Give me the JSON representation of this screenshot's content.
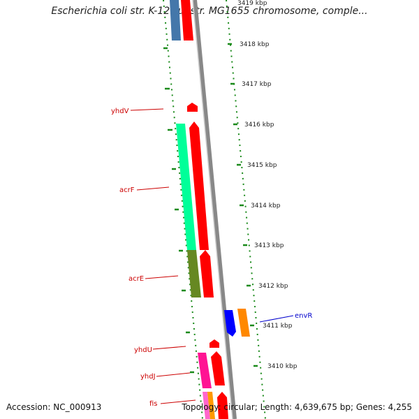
{
  "header": {
    "title": "Escherichia coli str. K-12 substr. MG1655 chromosome, comple..."
  },
  "footer": {
    "accession": "Accession: NC_000913",
    "stats": "Topology: circular; Length: 4,639,675 bp; Genes: 4,255"
  },
  "ticks": [
    "3419 kbp",
    "3418 kbp",
    "3417 kbp",
    "3416 kbp",
    "3415 kbp",
    "3414 kbp",
    "3413 kbp",
    "3412 kbp",
    "3411 kbp",
    "3410 kbp"
  ],
  "genes": [
    {
      "name": "yhdV",
      "color": "#ff0000"
    },
    {
      "name": "acrF",
      "color": "#ff0000",
      "feature_color": "#00ff99"
    },
    {
      "name": "acrE",
      "color": "#ff0000",
      "feature_color": "#668822"
    },
    {
      "name": "envR",
      "color": "#0000ff",
      "feature_color": "#ff8800"
    },
    {
      "name": "yhdU",
      "color": "#ff0000"
    },
    {
      "name": "yhdJ",
      "color": "#ff0000",
      "feature_color": "#ff1493"
    },
    {
      "name": "fis",
      "color": "#ff0000",
      "feature_color": "#ff9900"
    }
  ],
  "colors": {
    "backbone": "#888888",
    "dotted_track": "#1a8a1a",
    "label_line_left": "#cc0000",
    "label_line_right": "#0000cc",
    "top_blue_feature": "#4477aa"
  }
}
